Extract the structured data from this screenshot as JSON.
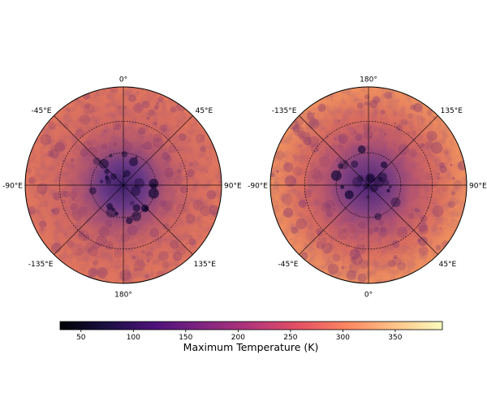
{
  "maps": [
    {
      "id": "north",
      "edge_labels": {
        "top": "0°",
        "upper_left": "-45°E",
        "upper_right": "45°E",
        "left": "-90°E",
        "right": "90°E",
        "lower_left": "-135°E",
        "lower_right": "135°E",
        "bottom": "180°"
      }
    },
    {
      "id": "south",
      "edge_labels": {
        "top": "180°",
        "upper_left": "-135°E",
        "upper_right": "135°E",
        "left": "-90°E",
        "right": "90°E",
        "lower_left": "-45°E",
        "lower_right": "45°E",
        "bottom": "0°"
      }
    }
  ],
  "colorbar": {
    "label": "Maximum Temperature (K)",
    "range": [
      30,
      395
    ],
    "ticks": [
      50,
      100,
      150,
      200,
      250,
      300,
      350
    ],
    "colormap": "magma"
  },
  "colors": {
    "outer_surface": "#dc6f5f",
    "mid_surface": "#c05a6e",
    "pole_surface": "#4d2a78",
    "grid_line": "#000000"
  }
}
